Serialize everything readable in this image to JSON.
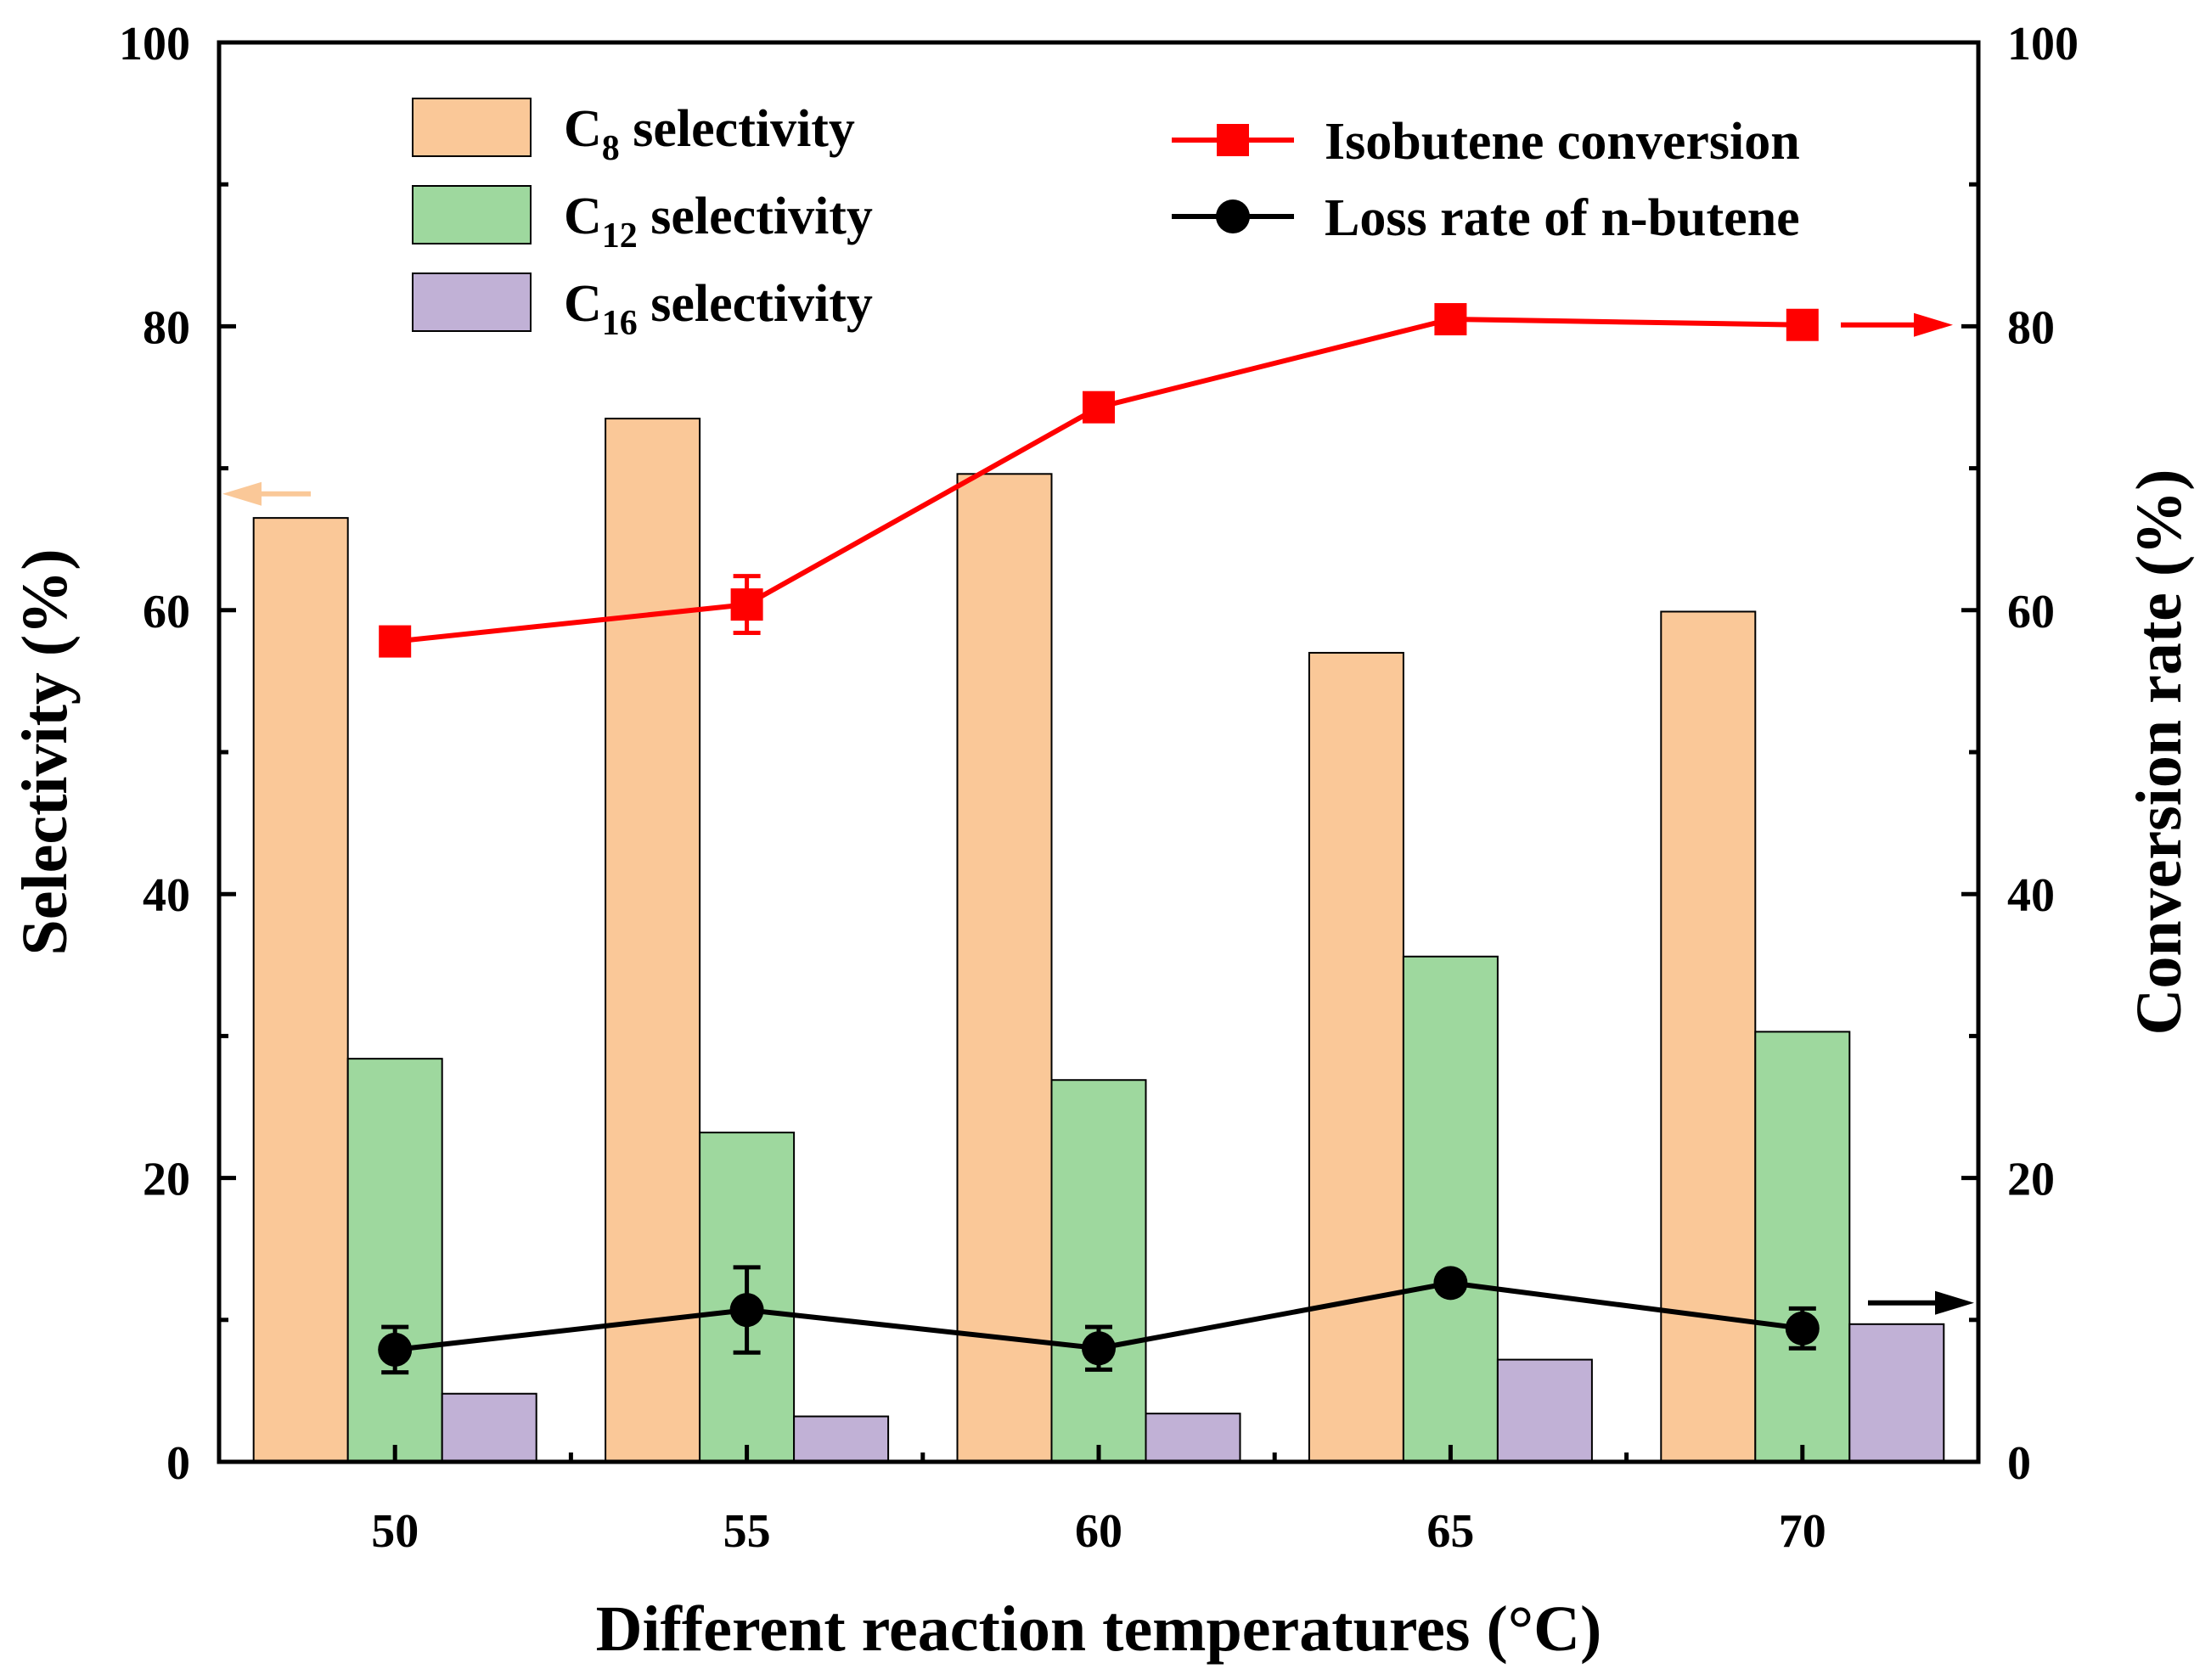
{
  "chart_data": {
    "type": "bar",
    "title": "",
    "xlabel": "Different reaction temperatures (°C)",
    "ylabel_left": "Selectivity (%)",
    "ylabel_right": "Conversion rate (%)",
    "ylim_left": [
      0,
      100
    ],
    "ylim_right": [
      0,
      100
    ],
    "categories": [
      "50",
      "55",
      "60",
      "65",
      "70"
    ],
    "yticks_left": [
      "0",
      "20",
      "40",
      "60",
      "80",
      "100"
    ],
    "yticks_right": [
      "0",
      "20",
      "40",
      "60",
      "80",
      "100"
    ],
    "bar_series": [
      {
        "name": "C8 selectivity",
        "legend_main": "C",
        "legend_sub": "8",
        "legend_rest": " selectivity",
        "color": "#FAC898",
        "values": [
          66.5,
          73.5,
          69.6,
          57.0,
          59.9
        ]
      },
      {
        "name": "C12 selectivity",
        "legend_main": "C",
        "legend_sub": "12",
        "legend_rest": " selectivity",
        "color": "#9ED89E",
        "values": [
          28.4,
          23.2,
          26.9,
          35.6,
          30.3
        ]
      },
      {
        "name": "C16 selectivity",
        "legend_main": "C",
        "legend_sub": "16",
        "legend_rest": " selectivity",
        "color": "#C1B1D6",
        "values": [
          4.8,
          3.2,
          3.4,
          7.2,
          9.7
        ]
      }
    ],
    "line_series": [
      {
        "name": "Isobutene conversion",
        "color": "#FF0000",
        "marker": "square",
        "axis": "right",
        "values": [
          57.8,
          60.4,
          74.3,
          80.5,
          80.1
        ],
        "errors": [
          0,
          2.0,
          0,
          0,
          0
        ]
      },
      {
        "name": "Loss rate of n-butene",
        "color": "#000000",
        "marker": "circle",
        "axis": "right",
        "values": [
          7.9,
          10.7,
          8.0,
          12.6,
          9.4
        ],
        "errors": [
          1.6,
          3.0,
          1.5,
          0,
          1.4
        ]
      }
    ],
    "annotations": [
      {
        "type": "arrow",
        "direction": "left",
        "meaning": "C8 selectivity refers to left axis",
        "color": "#FAC898"
      },
      {
        "type": "arrow",
        "direction": "right",
        "meaning": "Isobutene conversion refers to right axis",
        "color": "#FF0000"
      },
      {
        "type": "arrow",
        "direction": "right",
        "meaning": "Loss rate of n-butene refers to right axis",
        "color": "#000000"
      }
    ]
  }
}
